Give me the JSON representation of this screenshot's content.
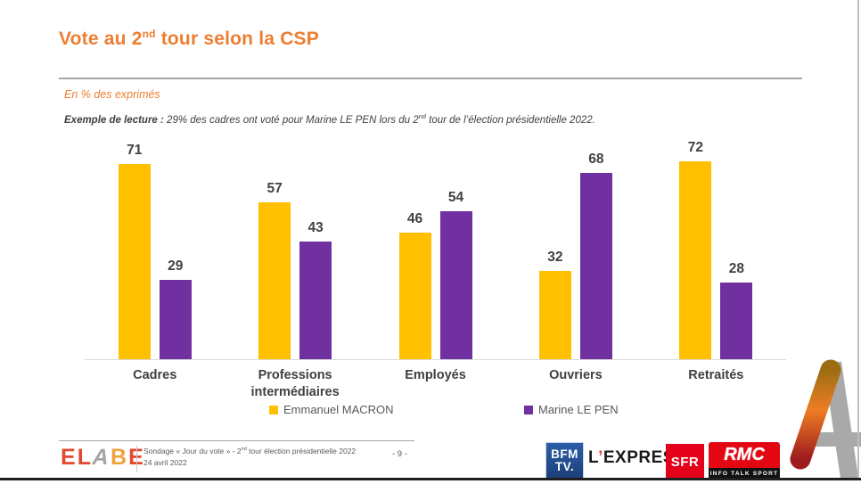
{
  "title": {
    "prefix": "Vote au 2",
    "sup": "nd",
    "suffix": " tour selon la CSP"
  },
  "subtitle": "En % des exprimés",
  "reading_note": {
    "label": "Exemple de lecture :",
    "body_before_sup": " 29% des cadres ont voté pour Marine LE PEN lors du 2",
    "sup": "nd",
    "body_after_sup": " tour de l’élection présidentielle 2022."
  },
  "chart_data": {
    "type": "bar",
    "categories": [
      "Cadres",
      "Professions intermédiaires",
      "Employés",
      "Ouvriers",
      "Retraités"
    ],
    "series": [
      {
        "name": "Emmanuel MACRON",
        "color": "#FFC000",
        "values": [
          71,
          57,
          46,
          32,
          72
        ]
      },
      {
        "name": "Marine LE PEN",
        "color": "#7030A0",
        "values": [
          29,
          43,
          54,
          68,
          28
        ]
      }
    ],
    "unit": "%",
    "ylim": [
      0,
      80
    ],
    "grid": false,
    "data_labels": true,
    "legend_position": "bottom",
    "title": "Vote au 2nd tour selon la CSP",
    "xlabel": "",
    "ylabel": "En % des exprimés"
  },
  "colors": {
    "accent_orange": "#ED7D31",
    "macron_yellow": "#FFC000",
    "lepen_purple": "#7030A0",
    "text_dark": "#404040",
    "text_gray": "#595959"
  },
  "footer": {
    "logo_letters": [
      {
        "ch": "E",
        "color": "#E2472F"
      },
      {
        "ch": "L",
        "color": "#E2472F"
      },
      {
        "ch": "A",
        "color": "#A5A5A5"
      },
      {
        "ch": "B",
        "color": "#F0A13E"
      },
      {
        "ch": "E",
        "color": "#E2472F"
      }
    ],
    "source_line1_before_sup": "Sondage « Jour du vote » - 2",
    "source_line1_sup": "nd",
    "source_line1_after_sup": " tour élection présidentielle 2022",
    "source_line2": "24 avril 2022",
    "page_number": "- 9 -",
    "partners": {
      "bfmtv": {
        "line1": "BFM",
        "line2": "TV."
      },
      "lexpress": {
        "l": "L",
        "apostrophe": "’",
        "rest": "EXPRESS"
      },
      "sfr": {
        "label": "SFR"
      },
      "rmc": {
        "label": "RMC",
        "tagline": "INFO TALK SPORT"
      }
    }
  }
}
